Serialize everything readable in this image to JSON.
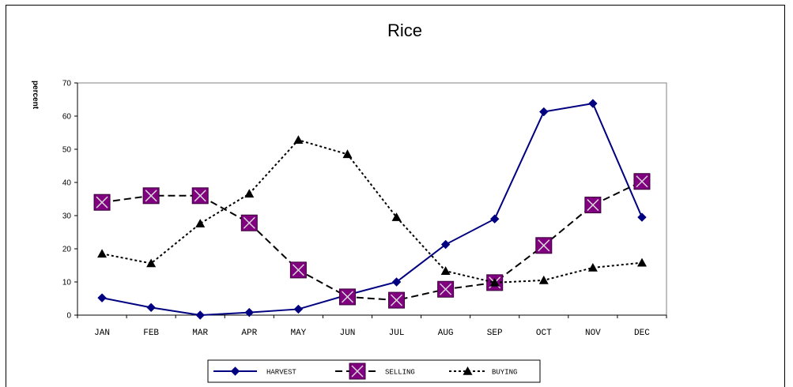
{
  "chart_data": {
    "type": "line",
    "title": "Rice",
    "xlabel": "",
    "ylabel": "percent",
    "ylim": [
      0,
      70
    ],
    "yticks": [
      "0",
      "10",
      "20",
      "30",
      "40",
      "50",
      "60",
      "70"
    ],
    "categories": [
      "JAN",
      "FEB",
      "MAR",
      "APR",
      "MAY",
      "JUN",
      "JUL",
      "AUG",
      "SEP",
      "OCT",
      "NOV",
      "DEC"
    ],
    "grid": false,
    "legend_position": "bottom",
    "series": [
      {
        "name": "HARVEST",
        "color": "#000080",
        "line": "solid",
        "marker": "diamond",
        "values": [
          5.2,
          2.3,
          0,
          0.8,
          1.8,
          6.1,
          10,
          21.3,
          29,
          61.3,
          63.8,
          29.5
        ]
      },
      {
        "name": "SELLING",
        "color": "#000000",
        "marker_color": "#800080",
        "line": "dashed",
        "marker": "square-x",
        "values": [
          34,
          36,
          36,
          27.8,
          13.6,
          5.5,
          4.5,
          7.8,
          9.8,
          21,
          33.2,
          40.3
        ]
      },
      {
        "name": "BUYING",
        "color": "#000000",
        "line": "dotted",
        "marker": "triangle",
        "values": [
          18.5,
          15.6,
          27.6,
          36.6,
          52.8,
          48.5,
          29.5,
          13.3,
          9.8,
          10.5,
          14.3,
          15.8
        ]
      }
    ]
  }
}
